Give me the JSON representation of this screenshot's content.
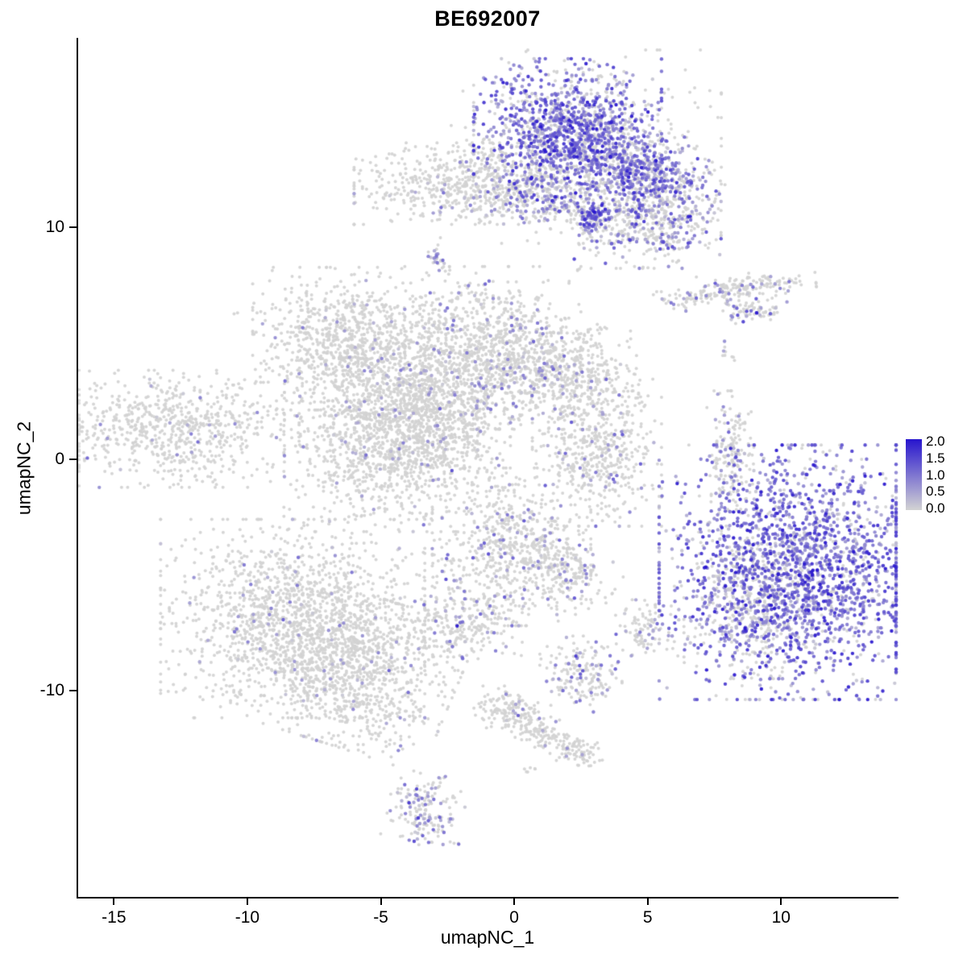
{
  "title": "BE692007",
  "axes": {
    "x": {
      "label": "umapNC_1",
      "ticks": [
        -15,
        -10,
        -5,
        0,
        5,
        10
      ]
    },
    "y": {
      "label": "umapNC_2",
      "ticks": [
        -10,
        0,
        10
      ]
    }
  },
  "legend": {
    "ticks": [
      "2.0",
      "1.5",
      "1.0",
      "0.5",
      "0.0"
    ],
    "color_low": "#D3D3D3",
    "color_high": "#2715CE"
  },
  "chart_data": {
    "type": "scatter",
    "title": "BE692007",
    "xlabel": "umapNC_1",
    "ylabel": "umapNC_2",
    "xlim": [
      -16.4,
      14.4
    ],
    "ylim": [
      -19.0,
      18.2
    ],
    "grid": false,
    "legend_position": "right",
    "point_color_scale": {
      "low": "#D3D3D3",
      "high": "#2715CE",
      "domain": [
        0,
        2
      ]
    },
    "cluster_fields": [
      "name",
      "cx",
      "cy",
      "rx",
      "ry",
      "rot_deg",
      "n",
      "colored_frac",
      "expr_mean",
      "expr_sd"
    ],
    "clusters": [
      [
        "top-main",
        2.0,
        14.0,
        1.6,
        1.5,
        0,
        1150,
        0.78,
        1.0,
        0.45
      ],
      [
        "top-arm",
        4.9,
        12.3,
        1.3,
        0.75,
        -28,
        600,
        0.7,
        0.95,
        0.45
      ],
      [
        "top-fringe",
        2.7,
        13.5,
        2.3,
        1.9,
        0,
        420,
        0.12,
        0.6,
        0.3
      ],
      [
        "topleft-gray",
        -1.6,
        11.9,
        2.0,
        0.8,
        0,
        620,
        0.05,
        0.5,
        0.25
      ],
      [
        "top-bridge",
        1.5,
        11.0,
        1.9,
        0.55,
        -8,
        260,
        0.3,
        0.8,
        0.4
      ],
      [
        "bridge-knot",
        2.9,
        10.45,
        0.3,
        0.28,
        0,
        80,
        0.85,
        1.1,
        0.4
      ],
      [
        "upper-right-blob",
        5.0,
        10.0,
        1.25,
        0.8,
        0,
        380,
        0.3,
        0.8,
        0.4
      ],
      [
        "tiny-dash",
        -2.9,
        8.7,
        0.15,
        0.4,
        0,
        26,
        0.5,
        0.9,
        0.4
      ],
      [
        "streak-a",
        7.1,
        7.0,
        0.85,
        0.25,
        5,
        90,
        0.18,
        0.7,
        0.3
      ],
      [
        "streak-b",
        9.0,
        7.5,
        1.05,
        0.25,
        5,
        110,
        0.08,
        0.6,
        0.3
      ],
      [
        "streak-c",
        8.9,
        6.4,
        0.6,
        0.25,
        0,
        70,
        0.25,
        0.8,
        0.5
      ],
      [
        "speck-d",
        7.95,
        4.7,
        0.15,
        0.3,
        0,
        9,
        0.3,
        0.8,
        0.3
      ],
      [
        "mid-left-lobe",
        -6.5,
        5.2,
        1.5,
        1.4,
        0,
        700,
        0.03,
        0.55,
        0.25
      ],
      [
        "mid-star",
        -4.1,
        3.0,
        1.8,
        1.9,
        0,
        950,
        0.04,
        0.55,
        0.25
      ],
      [
        "mid-right-lobe",
        -0.8,
        4.8,
        1.5,
        1.6,
        0,
        850,
        0.12,
        0.65,
        0.3
      ],
      [
        "mid-right-ext",
        1.8,
        4.0,
        1.3,
        0.95,
        0,
        470,
        0.08,
        0.6,
        0.3
      ],
      [
        "mid-lower-lobe",
        -5.0,
        0.6,
        1.65,
        1.7,
        0,
        850,
        0.05,
        0.55,
        0.25
      ],
      [
        "mid-bridge",
        -2.6,
        1.5,
        1.25,
        1.25,
        -35,
        380,
        0.05,
        0.55,
        0.25
      ],
      [
        "far-left",
        -12.9,
        1.3,
        1.95,
        1.15,
        0,
        720,
        0.03,
        0.6,
        0.3
      ],
      [
        "right-mid-vert",
        3.1,
        0.5,
        1.1,
        1.55,
        0,
        560,
        0.07,
        0.7,
        0.35
      ],
      [
        "right-thin",
        8.1,
        0.3,
        0.4,
        1.2,
        0,
        170,
        0.12,
        0.7,
        0.3
      ],
      [
        "center-bottom",
        -0.1,
        -3.8,
        1.35,
        1.55,
        0,
        680,
        0.12,
        0.7,
        0.35
      ],
      [
        "center-bottom-arm",
        2.1,
        -4.8,
        0.85,
        0.5,
        -30,
        150,
        0.1,
        0.6,
        0.3
      ],
      [
        "bottom-right-main",
        10.6,
        -4.9,
        2.35,
        2.5,
        0,
        2100,
        0.82,
        1.05,
        0.5
      ],
      [
        "bottom-right-fringe",
        9.0,
        -6.2,
        1.2,
        1.5,
        0,
        320,
        0.3,
        0.7,
        0.35
      ],
      [
        "bottom-left-main",
        -8.3,
        -6.9,
        2.25,
        1.95,
        0,
        1500,
        0.04,
        0.6,
        0.3
      ],
      [
        "bottom-left-tail",
        -5.9,
        -9.2,
        1.7,
        1.5,
        -20,
        850,
        0.02,
        0.55,
        0.25
      ],
      [
        "small-left-blob",
        -1.9,
        -7.1,
        1.0,
        0.7,
        0,
        230,
        0.13,
        0.7,
        0.4
      ],
      [
        "small-right-blob",
        4.9,
        -7.3,
        0.5,
        0.55,
        0,
        95,
        0.25,
        0.7,
        0.35
      ],
      [
        "small-lower-blob",
        2.5,
        -9.3,
        0.7,
        0.75,
        0,
        170,
        0.22,
        0.8,
        0.4
      ],
      [
        "streak-p1",
        -0.3,
        -10.8,
        0.55,
        0.45,
        0,
        120,
        0.07,
        0.6,
        0.3
      ],
      [
        "streak-p2",
        0.9,
        -11.7,
        0.65,
        0.35,
        -35,
        100,
        0.08,
        0.6,
        0.3
      ],
      [
        "streak-p3",
        2.3,
        -12.6,
        0.6,
        0.35,
        -35,
        90,
        0.05,
        0.6,
        0.3
      ],
      [
        "speck-column",
        -4.3,
        -12.3,
        0.15,
        0.95,
        0,
        15,
        0.12,
        0.6,
        0.3
      ],
      [
        "bottom-blob",
        -3.4,
        -15.3,
        0.65,
        0.8,
        -20,
        160,
        0.3,
        0.8,
        0.4
      ],
      [
        "single-dark-1",
        9.1,
        6.3,
        0.05,
        0.05,
        0,
        2,
        1.0,
        1.9,
        0.1
      ],
      [
        "single-dark-2",
        -2.1,
        -7.2,
        0.04,
        0.04,
        0,
        1,
        1.0,
        2.0,
        0
      ],
      [
        "single-purple-1",
        4.35,
        -2.3,
        0.05,
        0.05,
        0,
        1,
        1.0,
        0.9,
        0
      ],
      [
        "single-gray-1",
        -10.5,
        6.3,
        0.06,
        0.05,
        0,
        2,
        0,
        0,
        0
      ],
      [
        "speck-t",
        0.6,
        -13.4,
        0.2,
        0.12,
        0,
        6,
        0,
        0,
        0
      ],
      [
        "speck-u",
        -2.3,
        -16.6,
        0.15,
        0.1,
        0,
        4,
        0.3,
        0.7,
        0.2
      ],
      [
        "single-gray-2",
        2.4,
        8.2,
        0.08,
        0.06,
        0,
        3,
        0.2,
        0.6,
        0.2
      ]
    ]
  }
}
